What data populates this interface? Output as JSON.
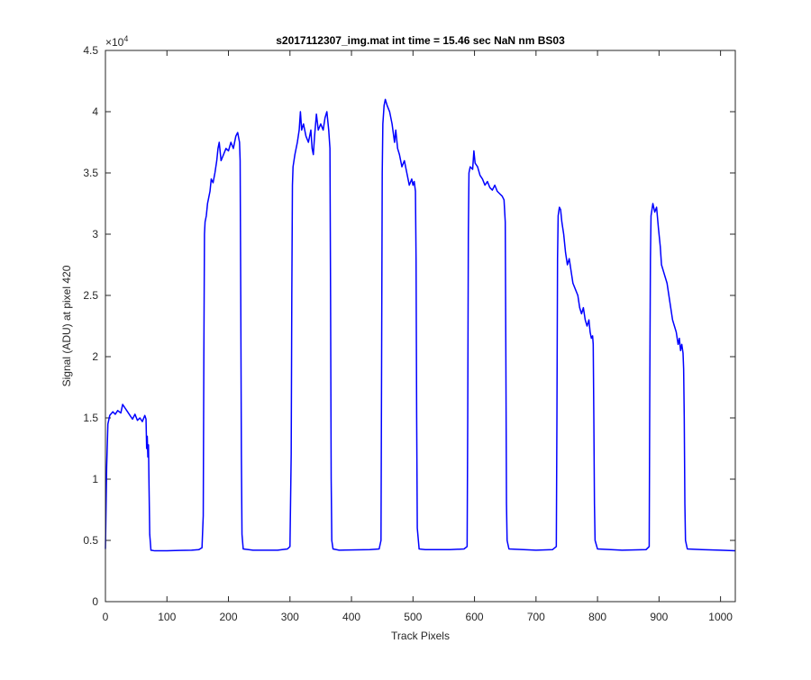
{
  "chart_data": {
    "type": "line",
    "title": "s2017112307_img.mat int time = 15.46 sec  NaN nm BS03",
    "xlabel": "Track Pixels",
    "ylabel": "Signal (ADU) at pixel 420",
    "y_exponent_label": "×10",
    "y_exponent_power": "4",
    "xlim": [
      0,
      1024
    ],
    "ylim": [
      0,
      45000
    ],
    "x_ticks": [
      0,
      100,
      200,
      300,
      400,
      500,
      600,
      700,
      800,
      900,
      1000
    ],
    "x_tick_labels": [
      "0",
      "100",
      "200",
      "300",
      "400",
      "500",
      "600",
      "700",
      "800",
      "900",
      "1000"
    ],
    "y_ticks": [
      0,
      5000,
      10000,
      15000,
      20000,
      25000,
      30000,
      35000,
      40000,
      45000
    ],
    "y_tick_labels": [
      "0",
      "0.5",
      "1",
      "1.5",
      "2",
      "2.5",
      "3",
      "3.5",
      "4",
      "4.5"
    ],
    "grid": false,
    "line_color": "#0000ff",
    "series": [
      {
        "points": [
          [
            0,
            4300
          ],
          [
            2,
            11000
          ],
          [
            4,
            14500
          ],
          [
            7,
            15200
          ],
          [
            12,
            15500
          ],
          [
            16,
            15300
          ],
          [
            20,
            15600
          ],
          [
            25,
            15400
          ],
          [
            28,
            16100
          ],
          [
            32,
            15800
          ],
          [
            36,
            15500
          ],
          [
            40,
            15200
          ],
          [
            44,
            14900
          ],
          [
            48,
            15300
          ],
          [
            52,
            14800
          ],
          [
            56,
            15000
          ],
          [
            60,
            14700
          ],
          [
            64,
            15200
          ],
          [
            66,
            14900
          ],
          [
            67,
            12500
          ],
          [
            68,
            13500
          ],
          [
            69,
            11800
          ],
          [
            70,
            12800
          ],
          [
            71,
            9000
          ],
          [
            72,
            5500
          ],
          [
            74,
            4200
          ],
          [
            80,
            4150
          ],
          [
            100,
            4150
          ],
          [
            120,
            4180
          ],
          [
            140,
            4200
          ],
          [
            152,
            4250
          ],
          [
            157,
            4400
          ],
          [
            159,
            7000
          ],
          [
            160,
            20000
          ],
          [
            161,
            30000
          ],
          [
            162,
            31000
          ],
          [
            164,
            31500
          ],
          [
            166,
            32500
          ],
          [
            168,
            33000
          ],
          [
            170,
            33500
          ],
          [
            172,
            34500
          ],
          [
            175,
            34200
          ],
          [
            178,
            35000
          ],
          [
            181,
            36000
          ],
          [
            183,
            37000
          ],
          [
            185,
            37500
          ],
          [
            188,
            36000
          ],
          [
            192,
            36500
          ],
          [
            196,
            37000
          ],
          [
            200,
            36800
          ],
          [
            204,
            37500
          ],
          [
            208,
            37000
          ],
          [
            212,
            38000
          ],
          [
            215,
            38300
          ],
          [
            218,
            37500
          ],
          [
            219,
            36000
          ],
          [
            220,
            25000
          ],
          [
            221,
            12000
          ],
          [
            222,
            5500
          ],
          [
            224,
            4300
          ],
          [
            240,
            4200
          ],
          [
            280,
            4200
          ],
          [
            296,
            4300
          ],
          [
            300,
            4500
          ],
          [
            302,
            12000
          ],
          [
            303,
            25000
          ],
          [
            304,
            34000
          ],
          [
            305,
            35500
          ],
          [
            308,
            36500
          ],
          [
            312,
            37500
          ],
          [
            315,
            38500
          ],
          [
            317,
            40000
          ],
          [
            319,
            38500
          ],
          [
            322,
            39000
          ],
          [
            326,
            38000
          ],
          [
            330,
            37500
          ],
          [
            334,
            38500
          ],
          [
            336,
            37000
          ],
          [
            338,
            36500
          ],
          [
            340,
            38000
          ],
          [
            343,
            39800
          ],
          [
            346,
            38500
          ],
          [
            350,
            39000
          ],
          [
            354,
            38500
          ],
          [
            357,
            39500
          ],
          [
            360,
            40000
          ],
          [
            363,
            38500
          ],
          [
            365,
            37000
          ],
          [
            366,
            25000
          ],
          [
            367,
            10000
          ],
          [
            368,
            5000
          ],
          [
            370,
            4300
          ],
          [
            380,
            4200
          ],
          [
            430,
            4250
          ],
          [
            445,
            4300
          ],
          [
            448,
            5000
          ],
          [
            449,
            20000
          ],
          [
            450,
            35000
          ],
          [
            451,
            39000
          ],
          [
            453,
            40500
          ],
          [
            455,
            41000
          ],
          [
            458,
            40500
          ],
          [
            462,
            40000
          ],
          [
            466,
            39000
          ],
          [
            470,
            37500
          ],
          [
            472,
            38500
          ],
          [
            475,
            37000
          ],
          [
            478,
            36500
          ],
          [
            482,
            35500
          ],
          [
            486,
            36000
          ],
          [
            490,
            35000
          ],
          [
            494,
            34000
          ],
          [
            498,
            34500
          ],
          [
            500,
            34000
          ],
          [
            502,
            34300
          ],
          [
            504,
            33500
          ],
          [
            505,
            28000
          ],
          [
            506,
            15000
          ],
          [
            507,
            6000
          ],
          [
            510,
            4300
          ],
          [
            520,
            4250
          ],
          [
            560,
            4250
          ],
          [
            583,
            4300
          ],
          [
            588,
            4500
          ],
          [
            589,
            15000
          ],
          [
            590,
            30000
          ],
          [
            591,
            35000
          ],
          [
            593,
            35500
          ],
          [
            597,
            35300
          ],
          [
            599,
            36800
          ],
          [
            601,
            35800
          ],
          [
            605,
            35500
          ],
          [
            609,
            34800
          ],
          [
            613,
            34500
          ],
          [
            617,
            34000
          ],
          [
            621,
            34300
          ],
          [
            625,
            33800
          ],
          [
            629,
            33600
          ],
          [
            633,
            34000
          ],
          [
            637,
            33500
          ],
          [
            641,
            33300
          ],
          [
            645,
            33100
          ],
          [
            648,
            32800
          ],
          [
            650,
            31000
          ],
          [
            651,
            20000
          ],
          [
            652,
            8000
          ],
          [
            653,
            5000
          ],
          [
            656,
            4300
          ],
          [
            680,
            4250
          ],
          [
            700,
            4200
          ],
          [
            727,
            4250
          ],
          [
            733,
            4500
          ],
          [
            734,
            15000
          ],
          [
            735,
            28000
          ],
          [
            736,
            31500
          ],
          [
            738,
            32200
          ],
          [
            740,
            32000
          ],
          [
            742,
            31000
          ],
          [
            745,
            30000
          ],
          [
            748,
            28500
          ],
          [
            751,
            27500
          ],
          [
            754,
            28000
          ],
          [
            757,
            27000
          ],
          [
            760,
            26000
          ],
          [
            764,
            25500
          ],
          [
            768,
            25000
          ],
          [
            771,
            24000
          ],
          [
            774,
            23500
          ],
          [
            777,
            24000
          ],
          [
            780,
            23000
          ],
          [
            783,
            22500
          ],
          [
            786,
            23000
          ],
          [
            788,
            22000
          ],
          [
            790,
            21500
          ],
          [
            792,
            21700
          ],
          [
            793,
            21000
          ],
          [
            794,
            15000
          ],
          [
            795,
            8000
          ],
          [
            796,
            5000
          ],
          [
            800,
            4300
          ],
          [
            840,
            4200
          ],
          [
            879,
            4250
          ],
          [
            884,
            4500
          ],
          [
            885,
            18000
          ],
          [
            886,
            28000
          ],
          [
            887,
            31500
          ],
          [
            890,
            32500
          ],
          [
            893,
            31800
          ],
          [
            896,
            32200
          ],
          [
            899,
            30500
          ],
          [
            902,
            29000
          ],
          [
            904,
            27500
          ],
          [
            907,
            27000
          ],
          [
            910,
            26500
          ],
          [
            913,
            26000
          ],
          [
            916,
            25000
          ],
          [
            919,
            24000
          ],
          [
            922,
            23000
          ],
          [
            925,
            22500
          ],
          [
            928,
            22000
          ],
          [
            931,
            21000
          ],
          [
            933,
            21500
          ],
          [
            935,
            20500
          ],
          [
            937,
            21000
          ],
          [
            939,
            20300
          ],
          [
            940,
            19000
          ],
          [
            941,
            15000
          ],
          [
            942,
            8000
          ],
          [
            943,
            5000
          ],
          [
            946,
            4300
          ],
          [
            970,
            4250
          ],
          [
            1000,
            4200
          ],
          [
            1024,
            4150
          ]
        ]
      }
    ]
  }
}
